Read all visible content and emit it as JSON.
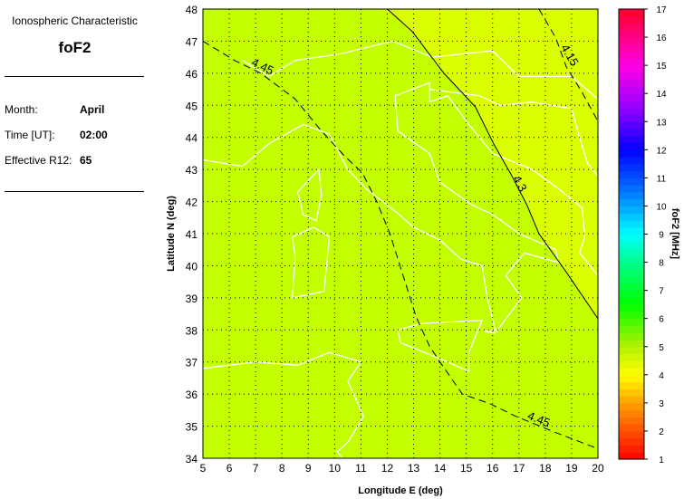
{
  "info": {
    "heading": "Ionospheric Characteristic",
    "characteristic": "foF2",
    "month_label": "Month:",
    "month": "April",
    "time_label": "Time [UT]:",
    "time": "02:00",
    "r12_label": "Effective R12:",
    "r12": "65"
  },
  "map": {
    "xlabel": "Longitude E (deg)",
    "ylabel": "Latitude N (deg)",
    "xlim": [
      5,
      20
    ],
    "ylim": [
      34,
      48
    ],
    "xticks": [
      5,
      6,
      7,
      8,
      9,
      10,
      11,
      12,
      13,
      14,
      15,
      16,
      17,
      18,
      19,
      20
    ],
    "yticks": [
      34,
      35,
      36,
      37,
      38,
      39,
      40,
      41,
      42,
      43,
      44,
      45,
      46,
      47,
      48
    ],
    "grid": true,
    "fill_colors": {
      "above_4_3": "#c4ff00",
      "below_4_3": "#dcff00"
    },
    "contours": [
      {
        "level": "4.45",
        "style": "dashed",
        "points": [
          [
            5,
            47.0
          ],
          [
            6.2,
            46.4
          ],
          [
            7.2,
            46.0
          ],
          [
            8.5,
            45.2
          ],
          [
            9.5,
            44.2
          ],
          [
            10.4,
            43.4
          ],
          [
            11.05,
            42.9
          ],
          [
            11.6,
            42.0
          ],
          [
            12.1,
            41.0
          ],
          [
            12.6,
            39.7
          ],
          [
            13.1,
            38.4
          ],
          [
            13.6,
            37.5
          ],
          [
            14.0,
            37.0
          ],
          [
            14.85,
            36.0
          ],
          [
            15.9,
            35.7
          ],
          [
            16.9,
            35.3
          ],
          [
            18.4,
            34.8
          ],
          [
            20,
            34.3
          ]
        ],
        "label_at": [
          [
            7.2,
            46.1
          ],
          [
            17.7,
            35.1
          ]
        ]
      },
      {
        "level": "4.3",
        "style": "solid",
        "points": [
          [
            12.0,
            48
          ],
          [
            12.95,
            47.3
          ],
          [
            14.15,
            46.0
          ],
          [
            15.35,
            44.95
          ],
          [
            16.04,
            43.8
          ],
          [
            16.73,
            42.8
          ],
          [
            17.3,
            41.9
          ],
          [
            17.76,
            41.0
          ],
          [
            18.8,
            39.8
          ],
          [
            20,
            38.35
          ]
        ],
        "label_at": [
          [
            16.9,
            42.5
          ]
        ]
      },
      {
        "level": "4.15",
        "style": "dashed",
        "points": [
          [
            17.76,
            48
          ],
          [
            18.4,
            47.1
          ],
          [
            18.8,
            46.2
          ],
          [
            19.4,
            45.4
          ],
          [
            20,
            44.5
          ]
        ],
        "label_at": [
          [
            18.8,
            46.5
          ]
        ]
      }
    ]
  },
  "colorbar": {
    "label": "foF2 [MHz]",
    "range": [
      1,
      17
    ],
    "ticks": [
      1,
      2,
      3,
      4,
      5,
      6,
      7,
      8,
      9,
      10,
      11,
      12,
      13,
      14,
      15,
      16,
      17
    ]
  }
}
